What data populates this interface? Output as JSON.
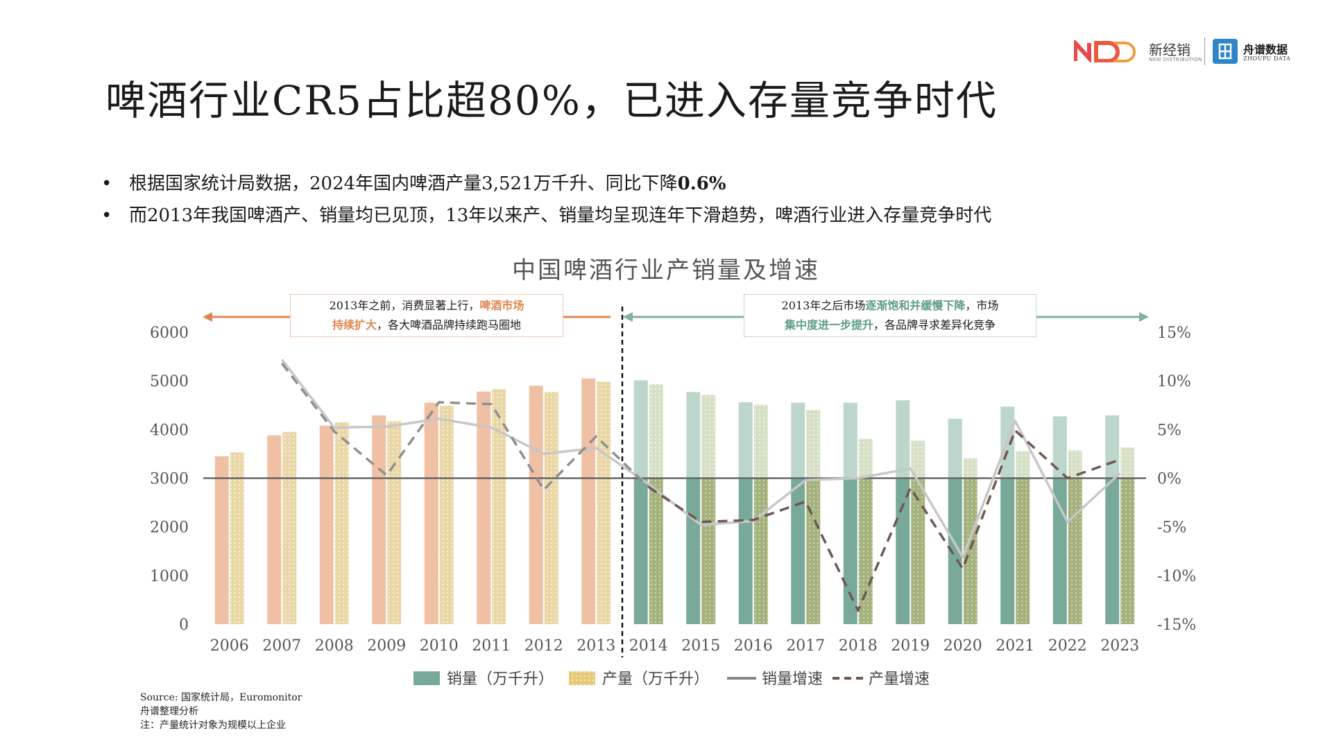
{
  "header": {
    "logo_nd_name": "新经销",
    "logo_nd_sub": "NEW DISTRIBUTION",
    "logo_zp_name": "舟谱数据",
    "logo_zp_sub": "ZHOUPU DATA"
  },
  "title": "啤酒行业CR5占比超80%，已进入存量竞争时代",
  "bullets": {
    "b1_text": "根据国家统计局数据，2024年国内啤酒产量3,521万千升、同比下降",
    "b1_bold": "0.6%",
    "b2_text": "而2013年我国啤酒产、销量均已见顶，13年以来产、销量均呈现连年下滑趋势，啤酒行业进入存量竞争时代"
  },
  "annotations": {
    "left_a": "2013年之前，消费显著上行，",
    "left_hl1": "啤酒市场",
    "left_hl2": "持续扩大",
    "left_b": "，各大啤酒品牌持续跑马圈地",
    "right_a": "2013年之后市场",
    "right_hl1": "逐渐饱和并缓慢下降",
    "right_b": "，市场",
    "right_hl2": "集中度进一步提升",
    "right_c": "，各品牌寻求差异化竞争"
  },
  "legend": {
    "sales": "销量（万千升）",
    "production": "产量（万千升）",
    "sales_growth": "销量增速",
    "production_growth": "产量增速"
  },
  "source": {
    "line1": "Source: 国家统计局，Euromonitor",
    "line2": "舟谱整理分析",
    "line3": "注：产量统计对象为规模以上企业"
  },
  "colors": {
    "pre_sales": "#f0c0a4",
    "pre_prod": "#ead7a8",
    "post_sales_upper": "#bcd6cc",
    "post_sales_lower": "#79a99a",
    "post_prod_upper": "#d6e0c6",
    "post_prod_lower": "#a5b27e",
    "sales_growth_line": "#c7c7c7",
    "sales_growth_line_post": "#7a7a7a",
    "prod_growth_line_pre": "#8e8e8e",
    "prod_growth_line_post": "#6e5850",
    "arrow_left": "#e0864f",
    "arrow_right": "#7fb0a2"
  },
  "chart_data": {
    "type": "bar+line",
    "title": "中国啤酒行业产销量及增速",
    "categories": [
      "2006",
      "2007",
      "2008",
      "2009",
      "2010",
      "2011",
      "2012",
      "2013",
      "2014",
      "2015",
      "2016",
      "2017",
      "2018",
      "2019",
      "2020",
      "2021",
      "2022",
      "2023"
    ],
    "series": [
      {
        "name": "销量（万千升）",
        "axis": "left",
        "kind": "bar",
        "values": [
          3450,
          3880,
          4080,
          4290,
          4550,
          4780,
          4900,
          5050,
          5010,
          4770,
          4560,
          4550,
          4550,
          4600,
          4220,
          4470,
          4270,
          4290
        ]
      },
      {
        "name": "产量（万千升）",
        "axis": "left",
        "kind": "bar",
        "values": [
          3530,
          3950,
          4150,
          4170,
          4490,
          4830,
          4770,
          4980,
          4930,
          4710,
          4510,
          4400,
          3810,
          3770,
          3410,
          3560,
          3570,
          3630
        ]
      },
      {
        "name": "销量增速",
        "axis": "right",
        "kind": "line",
        "values": [
          null,
          12.2,
          5.2,
          5.3,
          6.1,
          5.2,
          2.5,
          3.1,
          -0.6,
          -4.8,
          -4.4,
          -0.2,
          0.0,
          1.0,
          -8.1,
          5.9,
          -4.5,
          0.5
        ]
      },
      {
        "name": "产量增速",
        "axis": "right",
        "kind": "line",
        "dashed": true,
        "values": [
          null,
          11.8,
          4.8,
          0.3,
          7.8,
          7.6,
          -1.2,
          4.3,
          -0.9,
          -4.5,
          -4.3,
          -2.4,
          -13.6,
          -1.0,
          -9.3,
          4.9,
          0.0,
          1.9
        ]
      }
    ],
    "ylim_left": [
      0,
      6000
    ],
    "yticks_left": [
      "0",
      "1000",
      "2000",
      "3000",
      "4000",
      "5000",
      "6000"
    ],
    "ylim_right": [
      -15,
      15
    ],
    "yticks_right": [
      "-15%",
      "-10%",
      "-5%",
      "0%",
      "5%",
      "10%",
      "15%"
    ],
    "split_after": "2013",
    "legend_position": "bottom"
  }
}
